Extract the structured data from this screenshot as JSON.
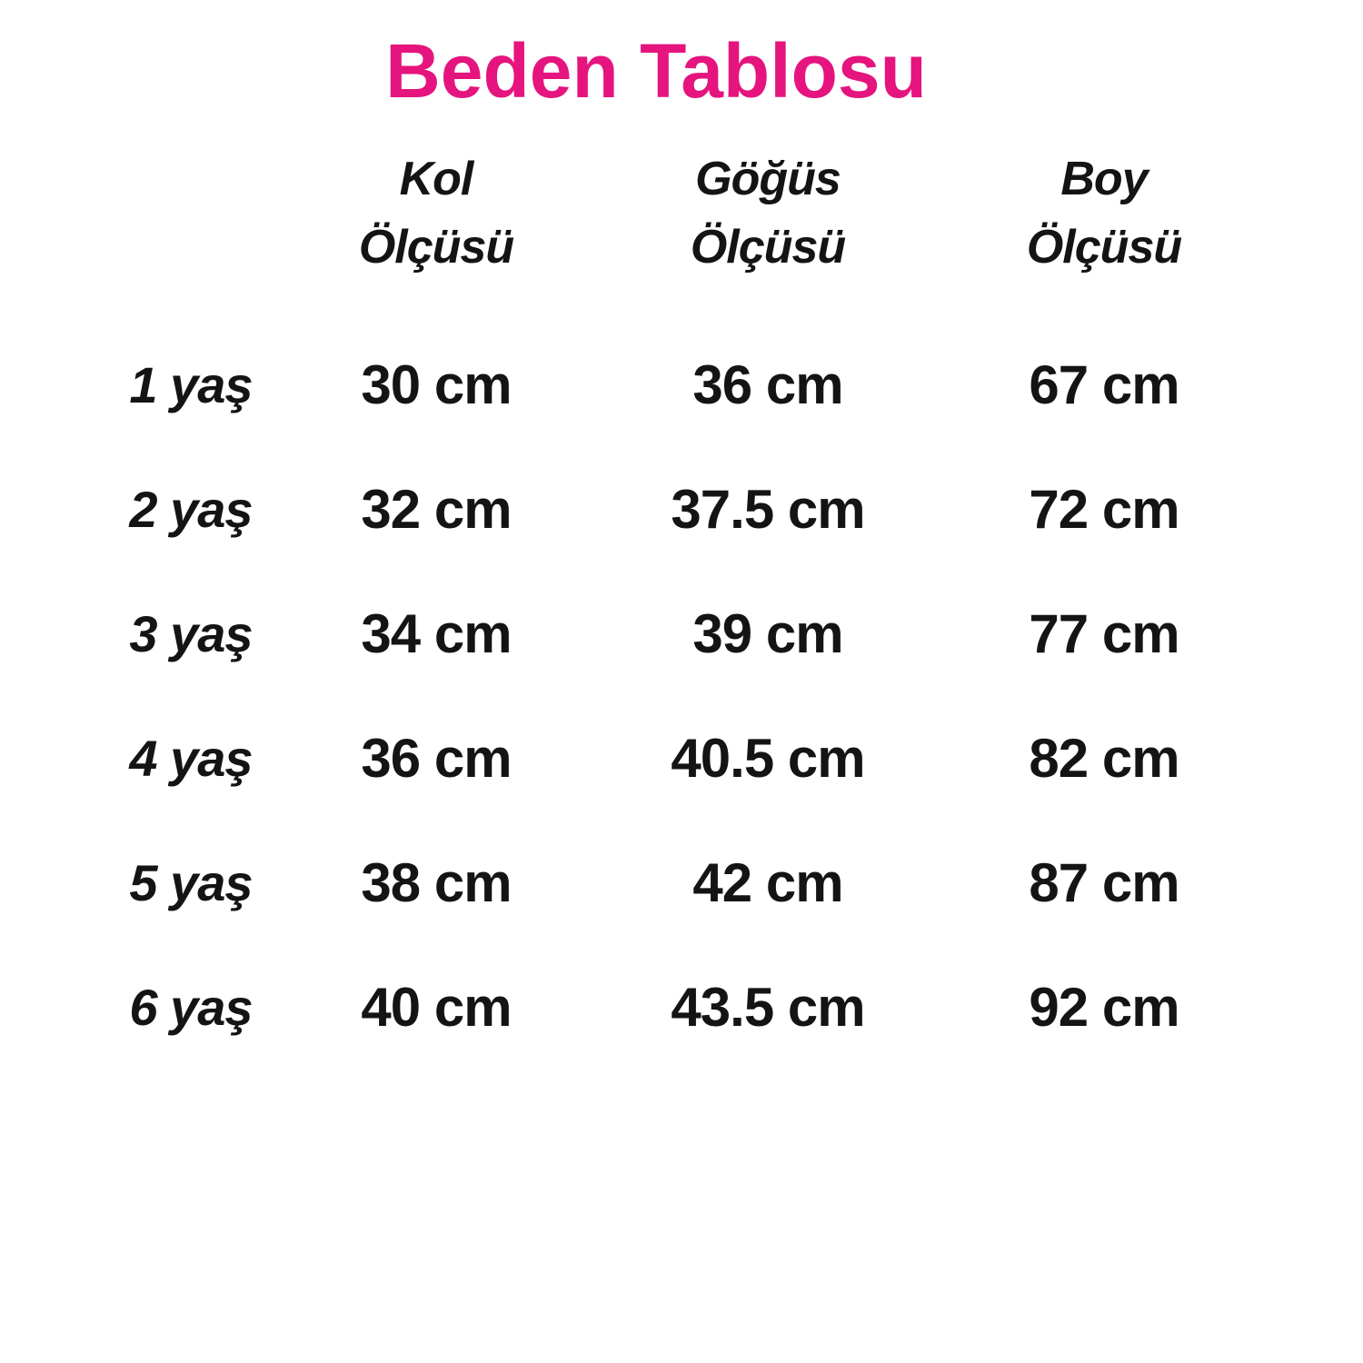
{
  "colors": {
    "title": "#E5147E",
    "text": "#141414",
    "background": "#FFFFFF"
  },
  "chart_data": {
    "type": "table",
    "title": "Beden Tablosu",
    "unit": "cm",
    "columns": [
      {
        "line1": "Kol",
        "line2": "Ölçüsü"
      },
      {
        "line1": "Göğüs",
        "line2": "Ölçüsü"
      },
      {
        "line1": "Boy",
        "line2": "Ölçüsü"
      }
    ],
    "rows": [
      {
        "age": "1 yaş",
        "kol": "30 cm",
        "gogus": "36 cm",
        "boy": "67 cm"
      },
      {
        "age": "2 yaş",
        "kol": "32 cm",
        "gogus": "37.5 cm",
        "boy": "72 cm"
      },
      {
        "age": "3 yaş",
        "kol": "34 cm",
        "gogus": "39 cm",
        "boy": "77 cm"
      },
      {
        "age": "4 yaş",
        "kol": "36 cm",
        "gogus": "40.5 cm",
        "boy": "82 cm"
      },
      {
        "age": "5 yaş",
        "kol": "38 cm",
        "gogus": "42 cm",
        "boy": "87 cm"
      },
      {
        "age": "6 yaş",
        "kol": "40 cm",
        "gogus": "43.5 cm",
        "boy": "92 cm"
      }
    ]
  }
}
